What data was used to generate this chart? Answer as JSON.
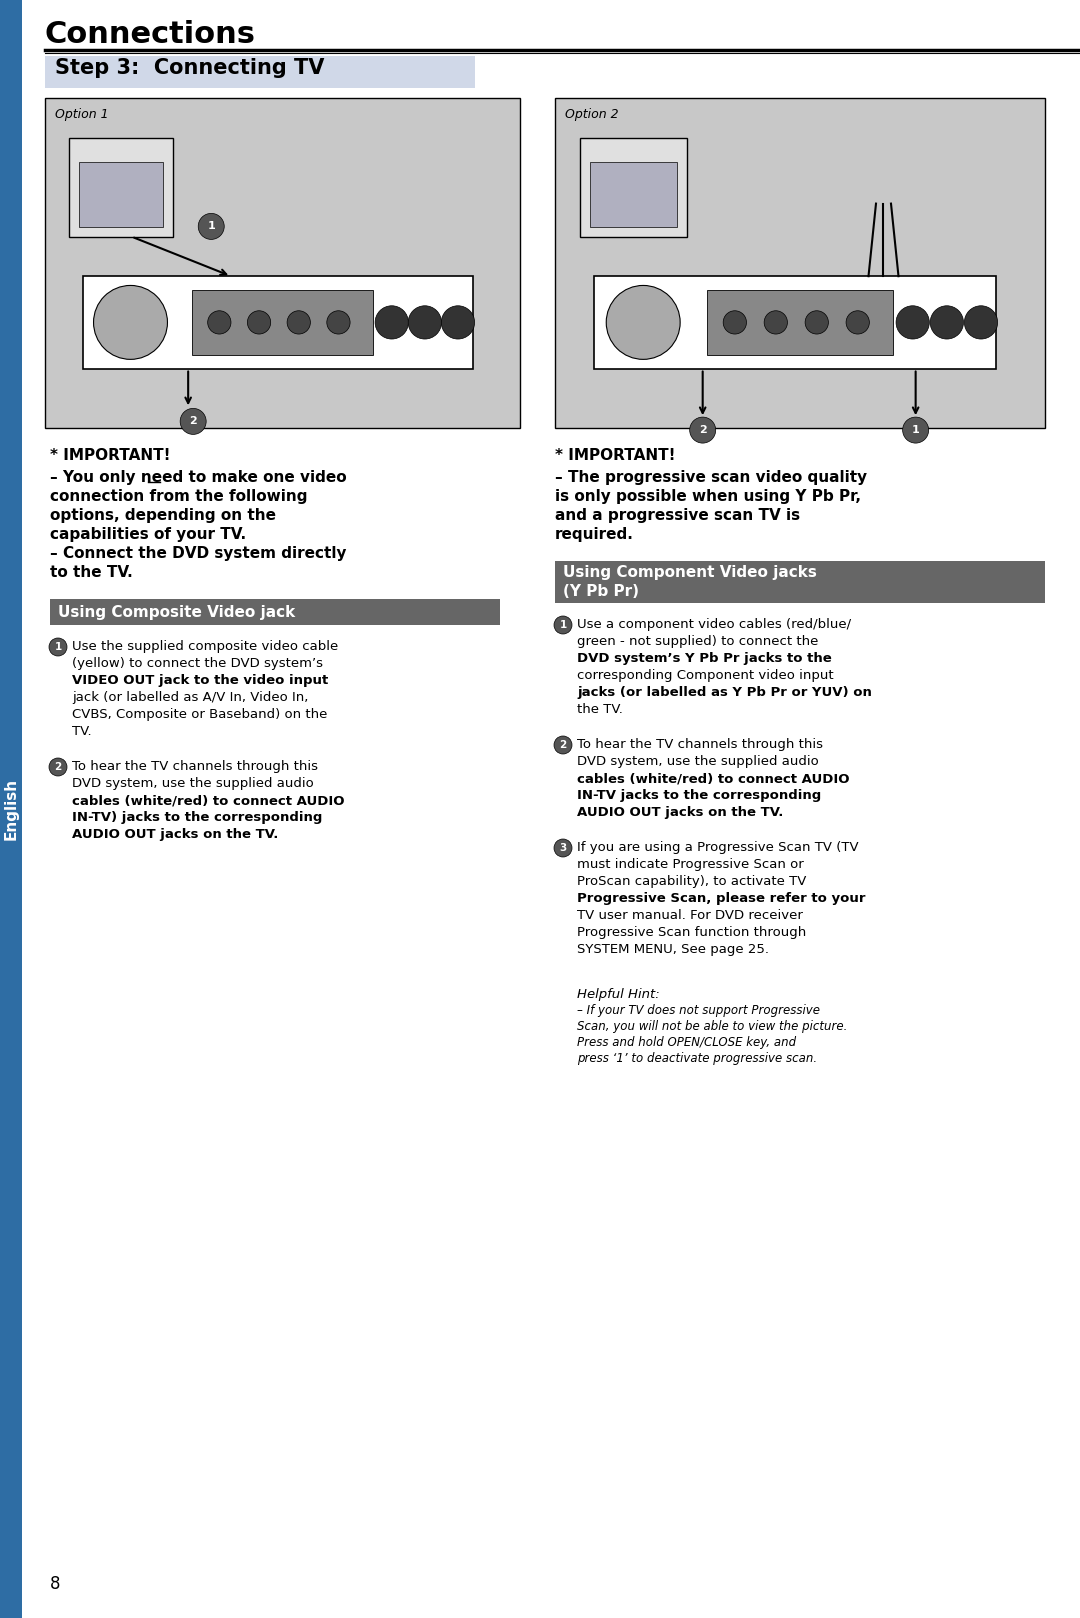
{
  "page_title": "Connections",
  "step_title": "Step 3:  Connecting TV",
  "bg_color": "#ffffff",
  "sidebar_color": "#2e6da4",
  "sidebar_text": "English",
  "option1_label": "Option 1",
  "option2_label": "Option 2",
  "image_bg": "#c8c8c8",
  "section1_header": "Using Composite Video jack",
  "section2_header": "Using Component Video jacks\n(Y Pb Pr)",
  "header_bg": "#666666",
  "header_fg": "#ffffff",
  "important1_title": "* IMPORTANT!",
  "important1_lines": [
    "– You only need to make one video",
    "connection from the following",
    "options, depending on the",
    "capabilities of your TV.",
    "– Connect the DVD system directly",
    "to the TV."
  ],
  "important2_title": "* IMPORTANT!",
  "important2_lines": [
    "– The progressive scan video quality",
    "is only possible when using Y Pb Pr,",
    "and a progressive scan TV is",
    "required."
  ],
  "composite_steps": [
    {
      "num": "1",
      "lines": [
        "Use the supplied composite video cable",
        "(yellow) to connect the DVD system’s",
        "VIDEO OUT jack to the video input",
        "jack (or labelled as A/V In, Video In,",
        "CVBS, Composite or Baseband) on the",
        "TV."
      ],
      "bold_segments": [
        "VIDEO OUT"
      ]
    },
    {
      "num": "2",
      "lines": [
        "To hear the TV channels through this",
        "DVD system, use the supplied audio",
        "cables (white/red) to connect AUDIO",
        "IN-TV) jacks to the corresponding",
        "AUDIO OUT jacks on the TV."
      ],
      "bold_segments": [
        "AUDIO",
        "IN-TV)"
      ]
    }
  ],
  "component_steps": [
    {
      "num": "1",
      "lines": [
        "Use a component video cables (red/blue/",
        "green - not supplied) to connect the",
        "DVD system’s Y Pb Pr jacks to the",
        "corresponding Component video input",
        "jacks (or labelled as Y Pb Pr or YUV) on",
        "the TV."
      ],
      "bold_segments": [
        "Y Pb Pr"
      ]
    },
    {
      "num": "2",
      "lines": [
        "To hear the TV channels through this",
        "DVD system, use the supplied audio",
        "cables (white/red) to connect AUDIO",
        "IN-TV jacks to the corresponding",
        "AUDIO OUT jacks on the TV."
      ],
      "bold_segments": [
        "AUDIO",
        "IN-TV"
      ]
    },
    {
      "num": "3",
      "lines": [
        "If you are using a Progressive Scan TV (TV",
        "must indicate Progressive Scan or",
        "ProScan capability), to activate TV",
        "Progressive Scan, please refer to your",
        "TV user manual. For DVD receiver",
        "Progressive Scan function through",
        "SYSTEM MENU, See page 25."
      ],
      "bold_segments": [
        "Progressive Scan,"
      ]
    }
  ],
  "helpful_hint_title": "Helpful Hint:",
  "helpful_hint_lines": [
    "– If your TV does not support Progressive",
    "Scan, you will not be able to view the picture.",
    "Press and hold OPEN/CLOSE key, and",
    "press ‘1’ to deactivate progressive scan."
  ],
  "page_number": "8",
  "title_font_size": 22,
  "step_font_size": 15,
  "body_font_size": 9.5,
  "header_font_size": 11,
  "important_font_size": 11
}
